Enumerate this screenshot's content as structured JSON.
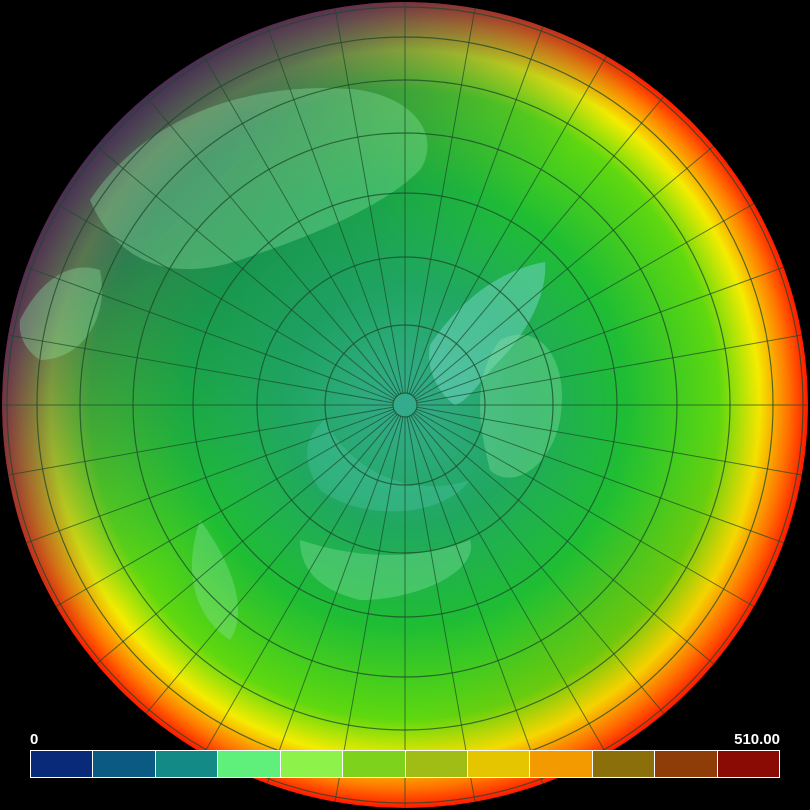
{
  "map": {
    "projection": "north-polar-orthographic",
    "field_colors": {
      "pole": "#2fa892",
      "mid": "#27c43a",
      "outer_edge_right": "#ff2000",
      "outer_edge_left": "#0a2f6a"
    },
    "graticule": {
      "visible": true,
      "color": "#1a3a24"
    },
    "features": [
      "land-mass-overlay",
      "polar-cap",
      "graticule-lines"
    ]
  },
  "colorbar": {
    "min_label": "0",
    "max_label": "510.00",
    "segments": [
      "#082a78",
      "#0b5a84",
      "#138a86",
      "#5ef07a",
      "#8df24a",
      "#7dd31b",
      "#9fbd14",
      "#e4c500",
      "#f39a00",
      "#8a6f0a",
      "#8e3c08",
      "#8a0a04"
    ]
  }
}
